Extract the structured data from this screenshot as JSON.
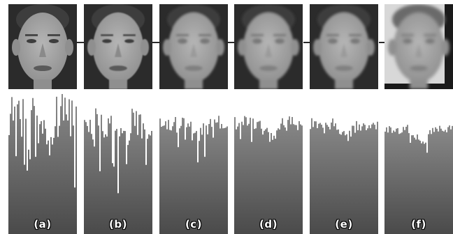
{
  "panels": [
    {
      "label": "(a)",
      "smoothing": 0,
      "hist_top": 0.05,
      "variance": 0.55
    },
    {
      "label": "(b)",
      "smoothing": 0.25,
      "hist_top": 0.1,
      "variance": 0.42
    },
    {
      "label": "(c)",
      "smoothing": 0.55,
      "hist_top": 0.1,
      "variance": 0.22
    },
    {
      "label": "(d)",
      "smoothing": 0.65,
      "hist_top": 0.1,
      "variance": 0.18
    },
    {
      "label": "(e)",
      "smoothing": 0.75,
      "hist_top": 0.1,
      "variance": 0.16
    },
    {
      "label": "(f)",
      "smoothing": 1.0,
      "hist_top": 0.14,
      "variance": 0.12
    }
  ],
  "colors": {
    "face_bg_dark": "#2b2b2b",
    "skin_light": "#b5b5b5",
    "skin_mid": "#8f8f8f",
    "hair": "#3d3d3d",
    "hist_top": "#8a8a8a",
    "hist_bottom": "#4a4a4a",
    "connector": "#2a2a2a"
  }
}
